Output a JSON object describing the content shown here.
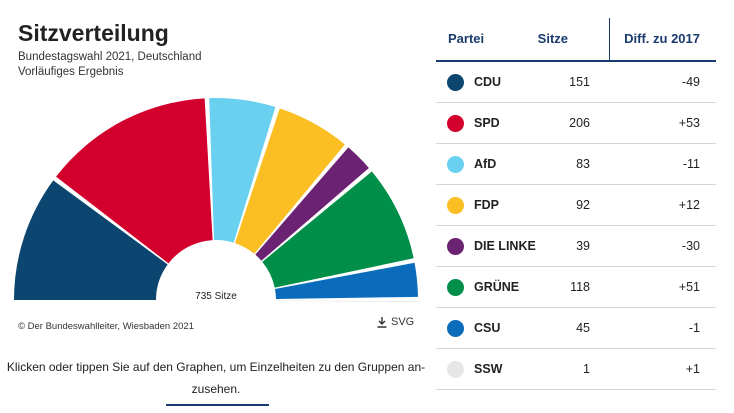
{
  "header": {
    "title": "Sitzverteilung",
    "subtitle_line1": "Bundestagswahl 2021, Deutschland",
    "subtitle_line2": "Vorläufiges Ergebnis"
  },
  "chart_data": {
    "type": "pie",
    "variant": "parliament-semicircle",
    "title": "Sitzverteilung",
    "center_label": "735 Sitze",
    "total_seats": 735,
    "parties": [
      {
        "name": "CDU",
        "seats": 151,
        "diff": "-49",
        "color": "#0b4570"
      },
      {
        "name": "SPD",
        "seats": 206,
        "diff": "+53",
        "color": "#d3002d"
      },
      {
        "name": "AfD",
        "seats": 83,
        "diff": "-11",
        "color": "#6ad0ef"
      },
      {
        "name": "FDP",
        "seats": 92,
        "diff": "+12",
        "color": "#fbbf24"
      },
      {
        "name": "DIE LINKE",
        "seats": 39,
        "diff": "-30",
        "color": "#6b2273"
      },
      {
        "name": "GRÜNE",
        "seats": 118,
        "diff": "+51",
        "color": "#008e48"
      },
      {
        "name": "CSU",
        "seats": 45,
        "diff": "-1",
        "color": "#0a6cbb"
      },
      {
        "name": "SSW",
        "seats": 1,
        "diff": "+1",
        "color": "#e6e6e6"
      }
    ]
  },
  "footer": {
    "credit": "© Der Bundeswahlleiter, Wiesbaden 2021",
    "download_label": "SVG",
    "hint_line1": "Klicken oder tippen Sie auf den Graphen, um Einzelheiten zu den Gruppen an-",
    "hint_line2": "zusehen."
  },
  "table": {
    "col_party": "Partei",
    "col_seats": "Sitze",
    "col_diff": "Diff. zu 2017"
  }
}
